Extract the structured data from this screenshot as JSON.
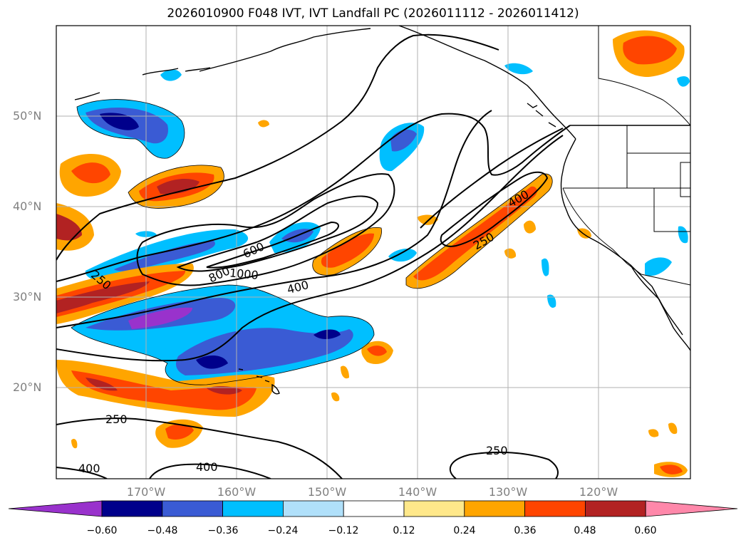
{
  "title": "2026010900 F048 IVT, IVT Landfall PC (2026011112 - 2026011412)",
  "lat_labels": [
    "50°N",
    "40°N",
    "30°N",
    "20°N"
  ],
  "lon_labels": [
    "170°W",
    "160°W",
    "150°W",
    "140°W",
    "130°W",
    "120°W"
  ],
  "contour_labels": [
    "600",
    "800",
    "1000",
    "400",
    "250",
    "400",
    "250",
    "250",
    "250",
    "400",
    "400",
    "250"
  ],
  "colorbar": {
    "ticks": [
      "−0.60",
      "−0.48",
      "−0.36",
      "−0.24",
      "−0.12",
      "0.12",
      "0.24",
      "0.36",
      "0.48",
      "0.60"
    ],
    "colors": [
      "#9932cc",
      "#00008b",
      "#3a5bd4",
      "#00bfff",
      "#b0e0fa",
      "#ffffff",
      "#ffe88a",
      "#ffa500",
      "#ff4500",
      "#b22222",
      "#ff88aa"
    ]
  },
  "fill_colors": {
    "very_neg": "#9932cc",
    "neg_dark": "#00008b",
    "neg_mid": "#3a5bd4",
    "neg_light": "#00bfff",
    "neg_pale": "#b0e0fa",
    "pos_pale": "#ffe88a",
    "pos_light": "#ffa500",
    "pos_mid": "#ff4500",
    "pos_dark": "#b22222"
  }
}
